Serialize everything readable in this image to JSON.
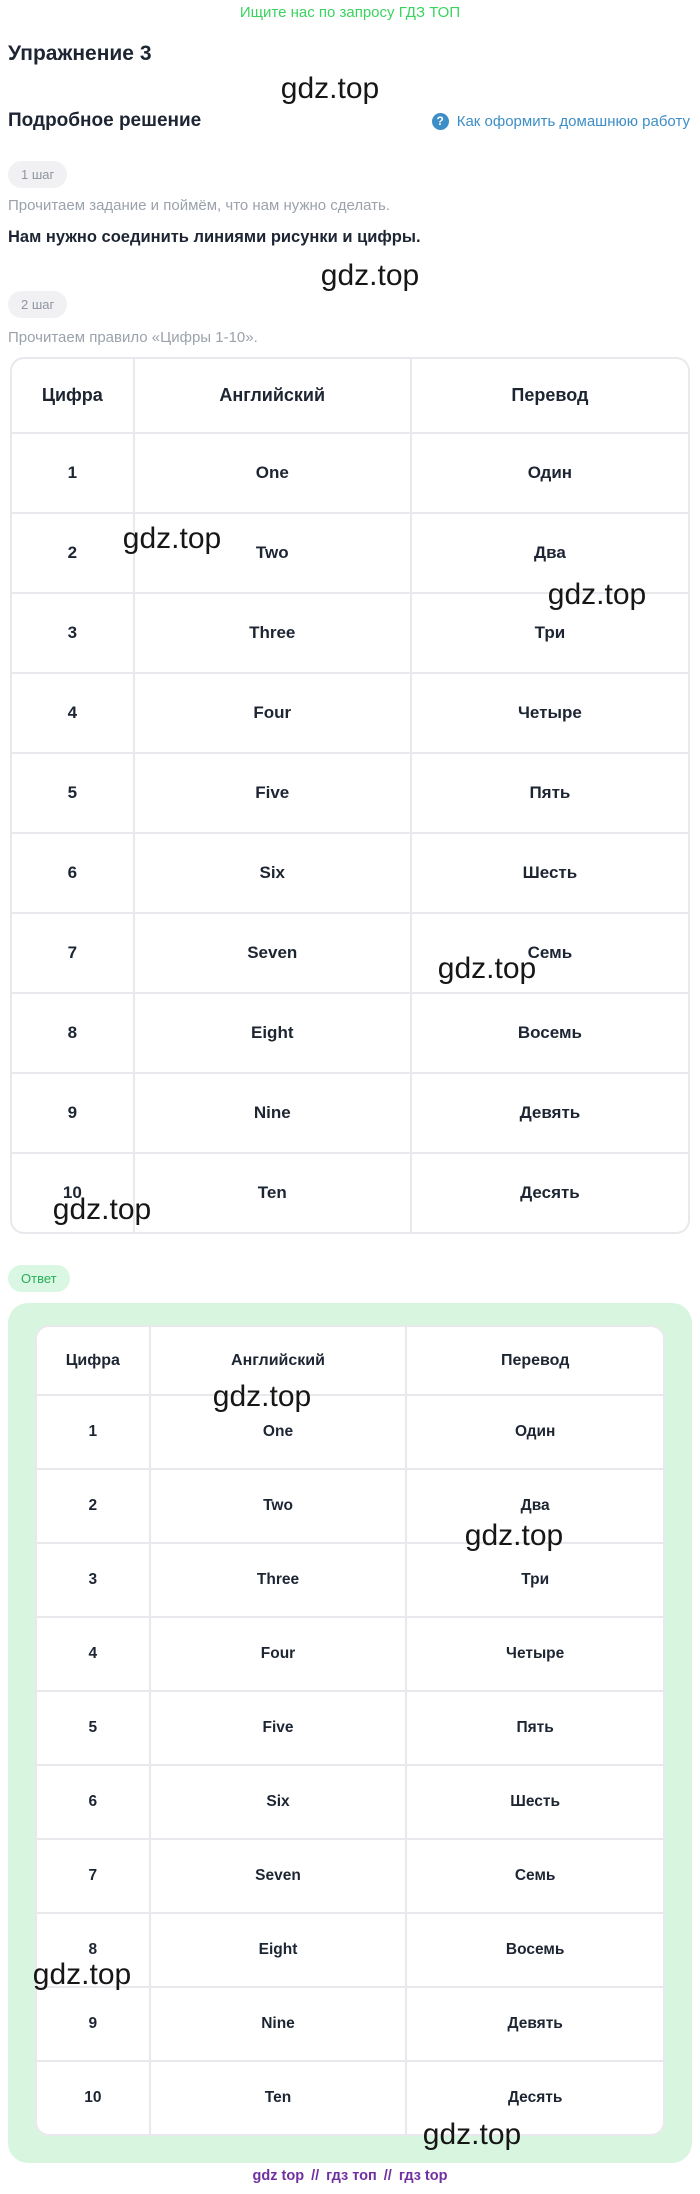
{
  "page": {
    "banner": "Ищите нас по запросу ГДЗ ТОП",
    "title": "Упражнение 3",
    "watermark": "gdz.top"
  },
  "solution": {
    "heading": "Подробное решение",
    "help_link": "Как оформить домашнюю работу",
    "help_icon_glyph": "?"
  },
  "steps": [
    {
      "badge": "1 шаг",
      "note": "Прочитаем задание и поймём, что нам нужно сделать.",
      "statement": "Нам нужно соединить линиями рисунки и цифры."
    },
    {
      "badge": "2 шаг",
      "note": "Прочитаем правило «Цифры 1-10»."
    }
  ],
  "numbers_table": {
    "headers": [
      "Цифра",
      "Английский",
      "Перевод"
    ],
    "rows": [
      [
        "1",
        "One",
        "Один"
      ],
      [
        "2",
        "Two",
        "Два"
      ],
      [
        "3",
        "Three",
        "Три"
      ],
      [
        "4",
        "Four",
        "Четыре"
      ],
      [
        "5",
        "Five",
        "Пять"
      ],
      [
        "6",
        "Six",
        "Шесть"
      ],
      [
        "7",
        "Seven",
        "Семь"
      ],
      [
        "8",
        "Eight",
        "Восемь"
      ],
      [
        "9",
        "Nine",
        "Девять"
      ],
      [
        "10",
        "Ten",
        "Десять"
      ]
    ]
  },
  "answer": {
    "badge": "Ответ"
  },
  "footer": {
    "links": [
      "gdz top",
      "гдз топ",
      "гдз top"
    ],
    "separator": "//"
  },
  "colors": {
    "accent_green": "#3bd35f",
    "link_blue": "#3d8ec7",
    "answer_box_bg": "#d8f6df",
    "answer_badge_text": "#2aaf58",
    "footer_purple": "#7030a0",
    "table_border": "#e9e9ed",
    "text_dark": "#1d2533",
    "text_gray": "#9ba2ac"
  }
}
